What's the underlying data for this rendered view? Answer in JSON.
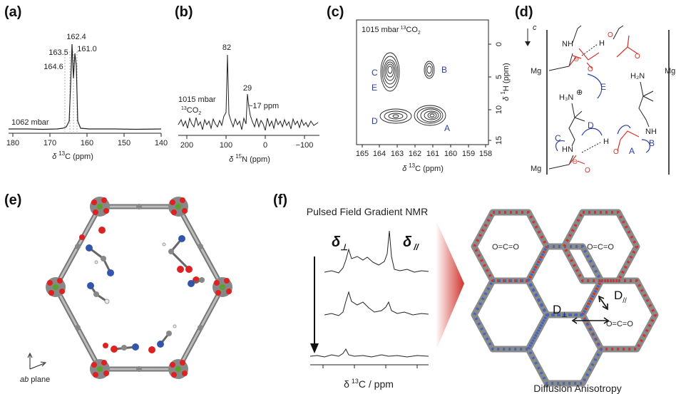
{
  "panels": {
    "a": {
      "label": "(a)",
      "peaks": [
        "162.4",
        "163.5",
        "161.0",
        "164.6"
      ],
      "pressure": "1062 mbar",
      "ticks": [
        "180",
        "170",
        "160",
        "150",
        "140"
      ],
      "xlabel_delta": "δ",
      "xlabel_text": "C (ppm)",
      "xlabel_sup": "13"
    },
    "b": {
      "label": "(b)",
      "peaks": [
        "82",
        "29"
      ],
      "note": "~17 ppm",
      "pressure_line1": "1015 mbar",
      "pressure_line2_sup": "13",
      "pressure_line2": "CO",
      "pressure_line2_sub": "2",
      "ticks": [
        "200",
        "100",
        "0",
        "−100"
      ],
      "xlabel_delta": "δ",
      "xlabel_sup": "15",
      "xlabel_text": "N (ppm)"
    },
    "c": {
      "label": "(c)",
      "header_text": "1015 mbar",
      "header_sup": "13",
      "header_co": "CO",
      "header_sub": "2",
      "site_labels": [
        "C",
        "B",
        "E",
        "D",
        "A"
      ],
      "xticks": [
        "165",
        "164",
        "163",
        "162",
        "161",
        "160",
        "159",
        "158"
      ],
      "yticks": [
        "0",
        "5",
        "10",
        "15"
      ],
      "xlabel_delta": "δ",
      "xlabel_sup": "13",
      "xlabel_text": "C (ppm)",
      "ylabel_delta": "δ",
      "ylabel_sup": "1",
      "ylabel_text": "H (ppm)"
    },
    "d": {
      "label": "(d)",
      "axis": "c",
      "atoms": {
        "mg": "Mg",
        "h2n": "H₂N",
        "h3n": "H₃N",
        "nh": "NH",
        "hn": "HN",
        "h": "H",
        "o": "O",
        "minus": "⊖",
        "plus": "⊕"
      },
      "arrow_labels": [
        "E",
        "D",
        "C",
        "A",
        "B"
      ]
    },
    "e": {
      "label": "(e)",
      "plane_italic": "ab",
      "plane_text": " plane"
    },
    "f": {
      "label": "(f)",
      "title": "Pulsed Field Gradient NMR",
      "delta_perp": "δ",
      "perp_sub": "⊥",
      "delta_par": "δ",
      "par_sub": "//",
      "xlabel_delta": "δ",
      "xlabel_sup": "13",
      "xlabel_text": "C / ppm",
      "co2_label": "O=C=O",
      "d_perp": "D",
      "d_par": "D",
      "caption": "Diffusion Anisotropy"
    }
  }
}
